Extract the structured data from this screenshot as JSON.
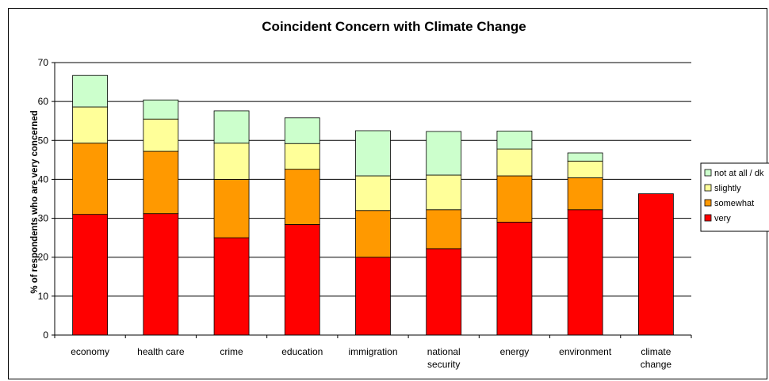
{
  "chart_data": {
    "type": "bar",
    "stacked": true,
    "title": "Coincident Concern with Climate Change",
    "xlabel": "",
    "ylabel": "% of respondents who are very concerned",
    "ylim": [
      0,
      70
    ],
    "yticks": [
      0,
      10,
      20,
      30,
      40,
      50,
      60,
      70
    ],
    "grid": true,
    "legend_position": "right",
    "categories": [
      [
        "economy"
      ],
      [
        "health care"
      ],
      [
        "crime"
      ],
      [
        "education"
      ],
      [
        "immigration"
      ],
      [
        "national",
        "security"
      ],
      [
        "energy"
      ],
      [
        "environment"
      ],
      [
        "climate",
        "change"
      ]
    ],
    "series": [
      {
        "name": "very",
        "color": "#ff0000",
        "values": [
          31,
          31.2,
          25,
          28.4,
          20,
          22.2,
          29,
          32.2,
          36.3
        ]
      },
      {
        "name": "somewhat",
        "color": "#ff9900",
        "values": [
          18.3,
          16,
          15,
          14.2,
          12,
          10,
          11.9,
          8.2,
          0
        ]
      },
      {
        "name": "slightly",
        "color": "#ffff99",
        "values": [
          9.3,
          8.3,
          9.3,
          6.6,
          8.9,
          8.9,
          6.9,
          4.3,
          0
        ]
      },
      {
        "name": "not at all / dk",
        "color": "#ccffcc",
        "values": [
          8.1,
          4.9,
          8.3,
          6.6,
          11.6,
          11.2,
          4.6,
          2.1,
          0
        ]
      }
    ]
  }
}
